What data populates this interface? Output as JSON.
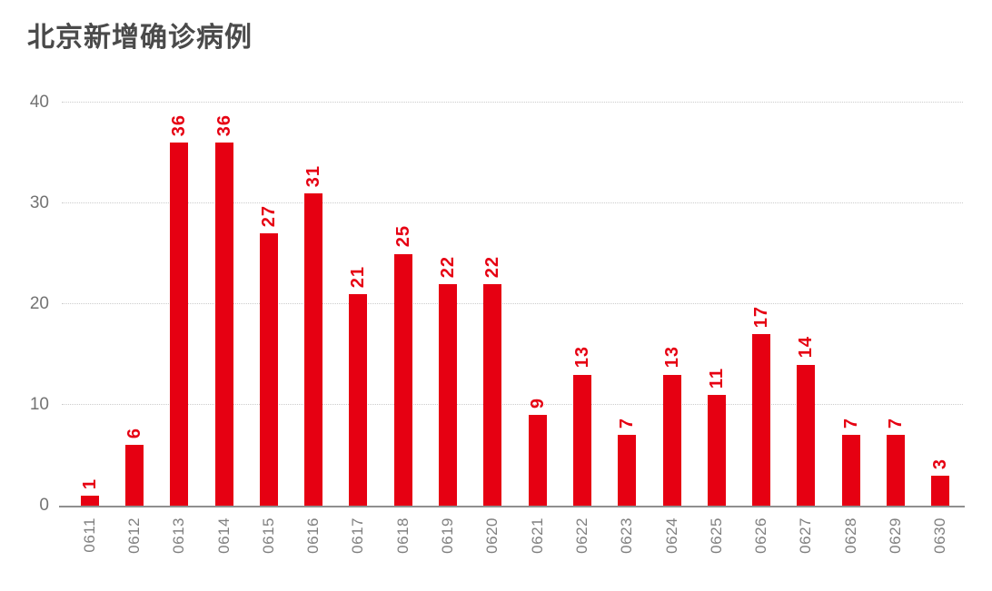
{
  "title": "北京新增确诊病例",
  "colors": {
    "bar": "#e60012",
    "value_label": "#e60012",
    "title": "#4a4a4a",
    "axis_tick": "#737373",
    "x_label": "#808080",
    "gridline": "#cccccc",
    "axis_line": "#8f8f8f"
  },
  "chart_data": {
    "type": "bar",
    "title": "北京新增确诊病例",
    "categories": [
      "0611",
      "0612",
      "0613",
      "0614",
      "0615",
      "0616",
      "0617",
      "0618",
      "0619",
      "0620",
      "0621",
      "0622",
      "0623",
      "0624",
      "0625",
      "0626",
      "0627",
      "0628",
      "0629",
      "0630"
    ],
    "values": [
      1,
      6,
      36,
      36,
      27,
      31,
      21,
      25,
      22,
      22,
      9,
      13,
      7,
      13,
      11,
      17,
      14,
      7,
      7,
      3
    ],
    "xlabel": "",
    "ylabel": "",
    "yticks": [
      0,
      10,
      20,
      30,
      40
    ],
    "ylim": [
      0,
      40
    ],
    "grid": "horizontal-dotted",
    "legend": "none",
    "value_labels": "rotated-90-above-bars",
    "x_tick_labels": "rotated-90"
  }
}
